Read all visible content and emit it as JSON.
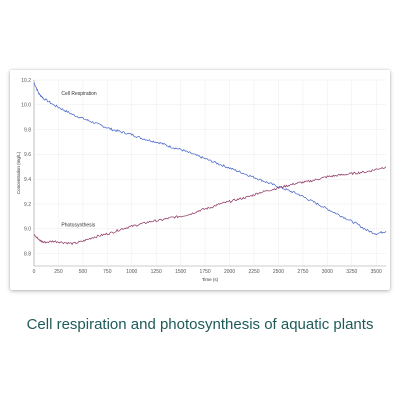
{
  "caption": "Cell respiration and photosynthesis of aquatic plants",
  "chart_data": {
    "type": "line",
    "title": "",
    "xlabel": "Time (s)",
    "ylabel": "Concentration (mg/L)",
    "xlim": [
      0,
      3600
    ],
    "ylim": [
      8.7,
      10.2
    ],
    "x_ticks": [
      0,
      250,
      500,
      750,
      1000,
      1250,
      1500,
      1750,
      2000,
      2250,
      2500,
      2750,
      3000,
      3250,
      3500
    ],
    "y_ticks": [
      8.8,
      9.0,
      9.2,
      9.4,
      9.6,
      9.8,
      10.0,
      10.2
    ],
    "grid": true,
    "annotations": [
      {
        "text": "Cell Respiration",
        "x": 280,
        "y": 10.08
      },
      {
        "text": "Photosynthesis",
        "x": 280,
        "y": 9.02
      }
    ],
    "series": [
      {
        "name": "Cell Respiration",
        "color": "#3f5fc8",
        "points": [
          [
            0,
            10.18
          ],
          [
            50,
            10.09
          ],
          [
            100,
            10.05
          ],
          [
            200,
            10.0
          ],
          [
            300,
            9.96
          ],
          [
            400,
            9.92
          ],
          [
            500,
            9.89
          ],
          [
            600,
            9.86
          ],
          [
            700,
            9.83
          ],
          [
            800,
            9.8
          ],
          [
            900,
            9.78
          ],
          [
            1000,
            9.76
          ],
          [
            1100,
            9.73
          ],
          [
            1200,
            9.71
          ],
          [
            1300,
            9.69
          ],
          [
            1400,
            9.66
          ],
          [
            1500,
            9.64
          ],
          [
            1600,
            9.61
          ],
          [
            1700,
            9.58
          ],
          [
            1800,
            9.55
          ],
          [
            1900,
            9.52
          ],
          [
            2000,
            9.49
          ],
          [
            2100,
            9.46
          ],
          [
            2200,
            9.43
          ],
          [
            2300,
            9.4
          ],
          [
            2400,
            9.37
          ],
          [
            2500,
            9.34
          ],
          [
            2600,
            9.31
          ],
          [
            2700,
            9.28
          ],
          [
            2800,
            9.24
          ],
          [
            2900,
            9.2
          ],
          [
            3000,
            9.16
          ],
          [
            3100,
            9.12
          ],
          [
            3200,
            9.08
          ],
          [
            3300,
            9.04
          ],
          [
            3400,
            8.99
          ],
          [
            3500,
            8.96
          ],
          [
            3600,
            8.98
          ]
        ]
      },
      {
        "name": "Photosynthesis",
        "color": "#8a2f5e",
        "points": [
          [
            0,
            8.96
          ],
          [
            50,
            8.91
          ],
          [
            100,
            8.89
          ],
          [
            200,
            8.9
          ],
          [
            300,
            8.89
          ],
          [
            400,
            8.88
          ],
          [
            500,
            8.9
          ],
          [
            600,
            8.93
          ],
          [
            700,
            8.95
          ],
          [
            800,
            8.97
          ],
          [
            900,
            9.0
          ],
          [
            1000,
            9.02
          ],
          [
            1100,
            9.04
          ],
          [
            1200,
            9.06
          ],
          [
            1300,
            9.07
          ],
          [
            1400,
            9.09
          ],
          [
            1500,
            9.1
          ],
          [
            1600,
            9.12
          ],
          [
            1700,
            9.15
          ],
          [
            1800,
            9.17
          ],
          [
            1900,
            9.2
          ],
          [
            2000,
            9.22
          ],
          [
            2100,
            9.24
          ],
          [
            2200,
            9.26
          ],
          [
            2300,
            9.29
          ],
          [
            2400,
            9.31
          ],
          [
            2500,
            9.33
          ],
          [
            2600,
            9.35
          ],
          [
            2700,
            9.37
          ],
          [
            2800,
            9.38
          ],
          [
            2900,
            9.4
          ],
          [
            3000,
            9.42
          ],
          [
            3100,
            9.43
          ],
          [
            3200,
            9.44
          ],
          [
            3300,
            9.45
          ],
          [
            3400,
            9.46
          ],
          [
            3500,
            9.48
          ],
          [
            3600,
            9.5
          ]
        ]
      }
    ]
  }
}
